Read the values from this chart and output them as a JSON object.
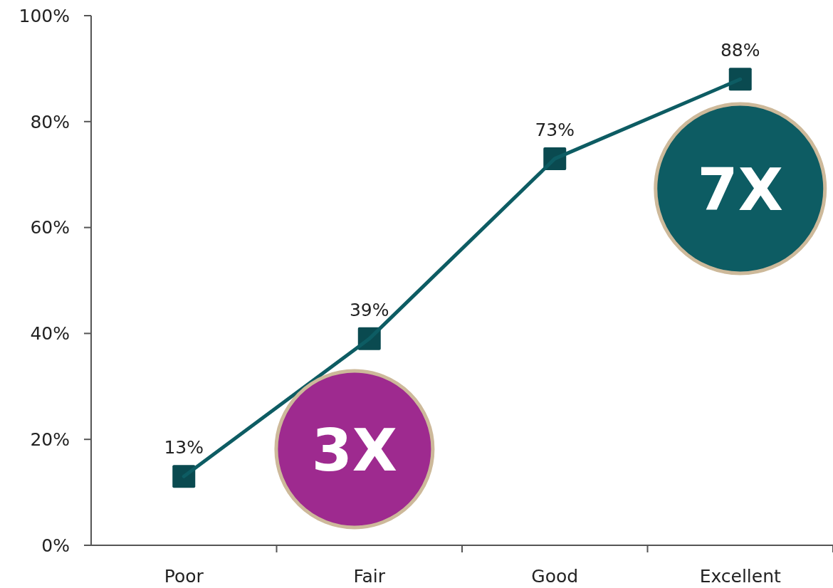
{
  "chart_data": {
    "type": "line",
    "categories": [
      "Poor",
      "Fair",
      "Good",
      "Excellent"
    ],
    "series": [
      {
        "color": "#0d5c63",
        "values": [
          13,
          39,
          73,
          88
        ],
        "value_labels": [
          "13%",
          "39%",
          "73%",
          "88%"
        ]
      }
    ],
    "ylim": [
      0,
      100
    ],
    "yticks": [
      {
        "value": 0,
        "label": "0%"
      },
      {
        "value": 20,
        "label": "20%"
      },
      {
        "value": 40,
        "label": "40%"
      },
      {
        "value": 60,
        "label": "60%"
      },
      {
        "value": 80,
        "label": "80%"
      },
      {
        "value": 100,
        "label": "100%"
      }
    ],
    "marker": "square",
    "line_style": "solid",
    "grid": false,
    "annotations": [
      "3X",
      "7X"
    ]
  }
}
